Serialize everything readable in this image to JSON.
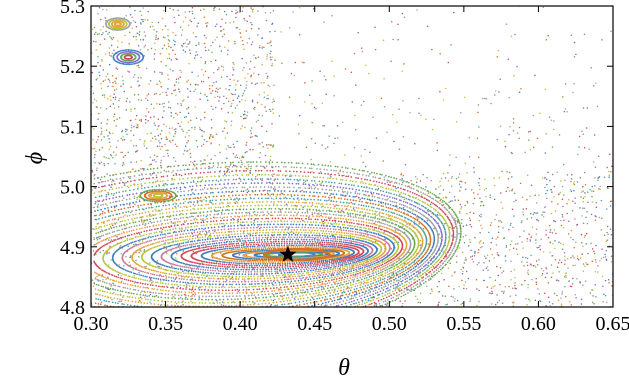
{
  "chart_data": {
    "type": "scatter",
    "title": "",
    "xlabel": "θ",
    "ylabel": "ϕ",
    "xlim": [
      0.3,
      0.65
    ],
    "ylim": [
      4.8,
      5.3
    ],
    "xticks": [
      0.3,
      0.35,
      0.4,
      0.45,
      0.5,
      0.55,
      0.6,
      0.65
    ],
    "xtick_labels": [
      "0.30",
      "0.35",
      "0.40",
      "0.45",
      "0.50",
      "0.55",
      "0.60",
      "0.65"
    ],
    "yticks": [
      4.8,
      4.9,
      5.0,
      5.1,
      5.2,
      5.3
    ],
    "ytick_labels": [
      "4.8",
      "4.9",
      "5.0",
      "5.1",
      "5.2",
      "5.3"
    ],
    "grid": false,
    "legend": "none",
    "series_colors": [
      "#e8a33d",
      "#d6701e",
      "#6aa84f",
      "#4aa3a0",
      "#7b6fd6",
      "#d1495b",
      "#a0a0a0",
      "#b5c63a",
      "#3f7fbf",
      "#cc7a9b"
    ],
    "fixed_point": {
      "x": 0.432,
      "y": 4.887,
      "marker": "star"
    },
    "central_orbit": {
      "cx": 0.438,
      "cy": 4.887,
      "rx": 0.022,
      "ry": 0.009,
      "color": "#d6701e"
    },
    "invariant_curves": {
      "center": [
        0.438,
        4.887
      ],
      "count": 34,
      "rx_min": 0.012,
      "rx_max": 0.17,
      "ry_min": 0.006,
      "ry_max": 0.3,
      "tilt_per_ry": 0.55,
      "bend": 0.35
    },
    "island_chains": [
      {
        "cx": 0.325,
        "cy": 5.215,
        "rx": 0.01,
        "ry": 0.012
      },
      {
        "cx": 0.345,
        "cy": 4.985,
        "rx": 0.012,
        "ry": 0.01
      },
      {
        "cx": 0.318,
        "cy": 5.27,
        "rx": 0.008,
        "ry": 0.01
      }
    ],
    "chaotic_sea": {
      "xrange": [
        0.3,
        0.65
      ],
      "yrange": [
        4.8,
        5.3
      ],
      "density": "high near the resonance band, sparse in the upper right"
    }
  }
}
